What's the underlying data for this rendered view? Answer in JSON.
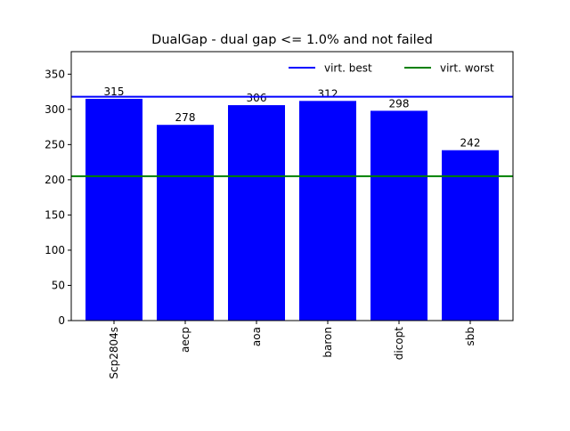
{
  "chart_data": {
    "type": "bar",
    "title": "DualGap - dual gap <= 1.0% and not failed",
    "xlabel": "",
    "ylabel": "",
    "categories": [
      "Scp2804s",
      "aecp",
      "aoa",
      "baron",
      "dicopt",
      "sbb"
    ],
    "values": [
      315,
      278,
      306,
      312,
      298,
      242
    ],
    "data_labels": [
      "315",
      "278",
      "306",
      "312",
      "298",
      "242"
    ],
    "bar_color": "#0000ff",
    "ylim": [
      0,
      382
    ],
    "yticks": [
      0,
      50,
      100,
      150,
      200,
      250,
      300,
      350
    ],
    "reference_lines": [
      {
        "name": "virt. best",
        "value": 318,
        "color": "#0000ff"
      },
      {
        "name": "virt. worst",
        "value": 205,
        "color": "#008000"
      }
    ],
    "legend": {
      "position": "top-right",
      "entries": [
        "virt. best",
        "virt. worst"
      ]
    },
    "grid": false
  }
}
